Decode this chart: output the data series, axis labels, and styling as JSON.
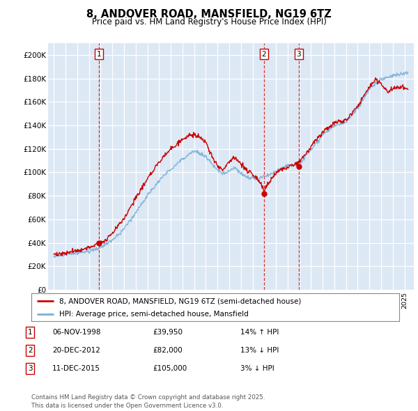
{
  "title": "8, ANDOVER ROAD, MANSFIELD, NG19 6TZ",
  "subtitle": "Price paid vs. HM Land Registry's House Price Index (HPI)",
  "bg_color": "#dde8f5",
  "plot_bg_color": "#dde8f5",
  "line1_color": "#cc0000",
  "line2_color": "#7bafd4",
  "vline_color": "#cc0000",
  "ylim": [
    0,
    210000
  ],
  "yticks": [
    0,
    20000,
    40000,
    60000,
    80000,
    100000,
    120000,
    140000,
    160000,
    180000,
    200000
  ],
  "ytick_labels": [
    "£0",
    "£20K",
    "£40K",
    "£60K",
    "£80K",
    "£100K",
    "£120K",
    "£140K",
    "£160K",
    "£180K",
    "£200K"
  ],
  "transactions": [
    {
      "date_x": 1998.85,
      "price": 39950,
      "label": "1"
    },
    {
      "date_x": 2012.97,
      "price": 82000,
      "label": "2"
    },
    {
      "date_x": 2015.94,
      "price": 105000,
      "label": "3"
    }
  ],
  "legend_entries": [
    "8, ANDOVER ROAD, MANSFIELD, NG19 6TZ (semi-detached house)",
    "HPI: Average price, semi-detached house, Mansfield"
  ],
  "table_rows": [
    {
      "num": "1",
      "date": "06-NOV-1998",
      "price": "£39,950",
      "change": "14% ↑ HPI"
    },
    {
      "num": "2",
      "date": "20-DEC-2012",
      "price": "£82,000",
      "change": "13% ↓ HPI"
    },
    {
      "num": "3",
      "date": "11-DEC-2015",
      "price": "£105,000",
      "change": "3% ↓ HPI"
    }
  ],
  "footer": "Contains HM Land Registry data © Crown copyright and database right 2025.\nThis data is licensed under the Open Government Licence v3.0.",
  "xmin": 1994.5,
  "xmax": 2025.8
}
